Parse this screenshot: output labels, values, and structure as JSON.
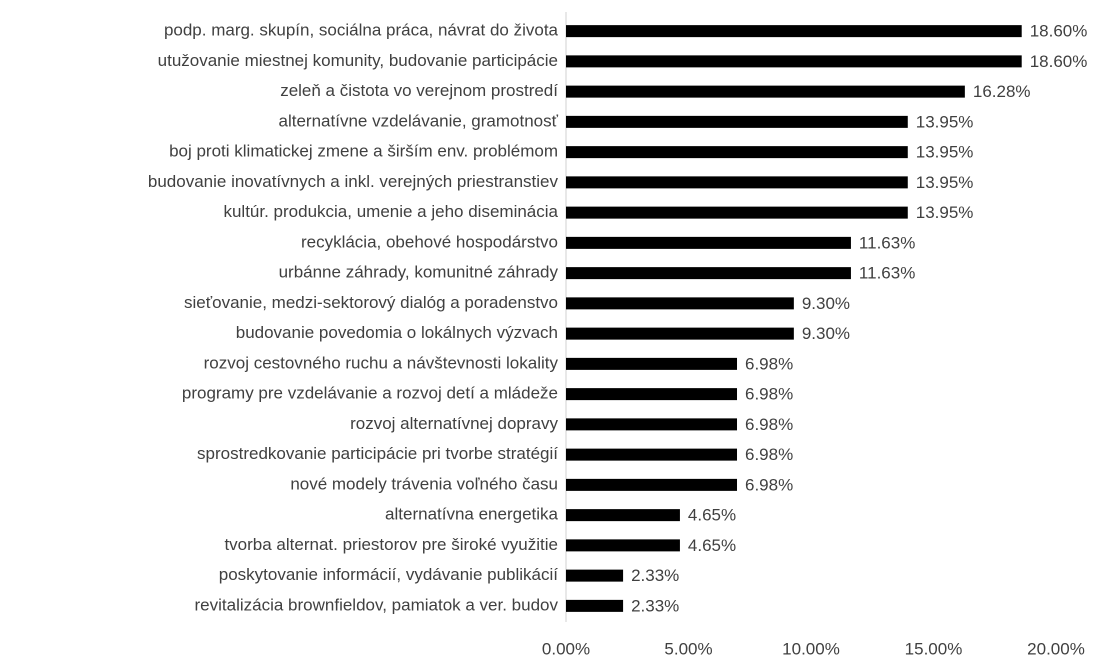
{
  "chart_data": {
    "type": "bar",
    "orientation": "horizontal",
    "categories": [
      "podp. marg. skupín, sociálna práca, návrat do života",
      "utužovanie miestnej komunity, budovanie participácie",
      "zeleň a čistota vo verejnom prostredí",
      "alternatívne vzdelávanie, gramotnosť",
      "boj proti klimatickej zmene a širším env. problémom",
      "budovanie inovatívnych a inkl. verejných priestranstiev",
      "kultúr. produkcia, umenie a jeho diseminácia",
      "recyklácia, obehové hospodárstvo",
      "urbánne záhrady, komunitné záhrady",
      "sieťovanie, medzi-sektorový dialóg a poradenstvo",
      "budovanie povedomia o lokálnych výzvach",
      "rozvoj cestovného ruchu a návštevnosti lokality",
      "programy pre vzdelávanie a rozvoj detí a mládeže",
      "rozvoj alternatívnej dopravy",
      "sprostredkovanie participácie pri tvorbe stratégií",
      "nové modely trávenia voľného času",
      "alternatívna energetika",
      "tvorba alternat. priestorov pre široké využitie",
      "poskytovanie informácií, vydávanie publikácií",
      "revitalizácia brownfieldov, pamiatok a ver. budov"
    ],
    "values": [
      18.6,
      18.6,
      16.28,
      13.95,
      13.95,
      13.95,
      13.95,
      11.63,
      11.63,
      9.3,
      9.3,
      6.98,
      6.98,
      6.98,
      6.98,
      6.98,
      4.65,
      4.65,
      2.33,
      2.33
    ],
    "value_labels": [
      "18.60%",
      "18.60%",
      "16.28%",
      "13.95%",
      "13.95%",
      "13.95%",
      "13.95%",
      "11.63%",
      "11.63%",
      "9.30%",
      "9.30%",
      "6.98%",
      "6.98%",
      "6.98%",
      "6.98%",
      "6.98%",
      "4.65%",
      "4.65%",
      "2.33%",
      "2.33%"
    ],
    "color": "#000000",
    "xlim": [
      0,
      20
    ],
    "xticks": [
      {
        "value": 0,
        "label": "0.00%"
      },
      {
        "value": 5,
        "label": "5.00%"
      },
      {
        "value": 10,
        "label": "10.00%"
      },
      {
        "value": 15,
        "label": "15.00%"
      },
      {
        "value": 20,
        "label": "20.00%"
      }
    ],
    "grid": false
  }
}
